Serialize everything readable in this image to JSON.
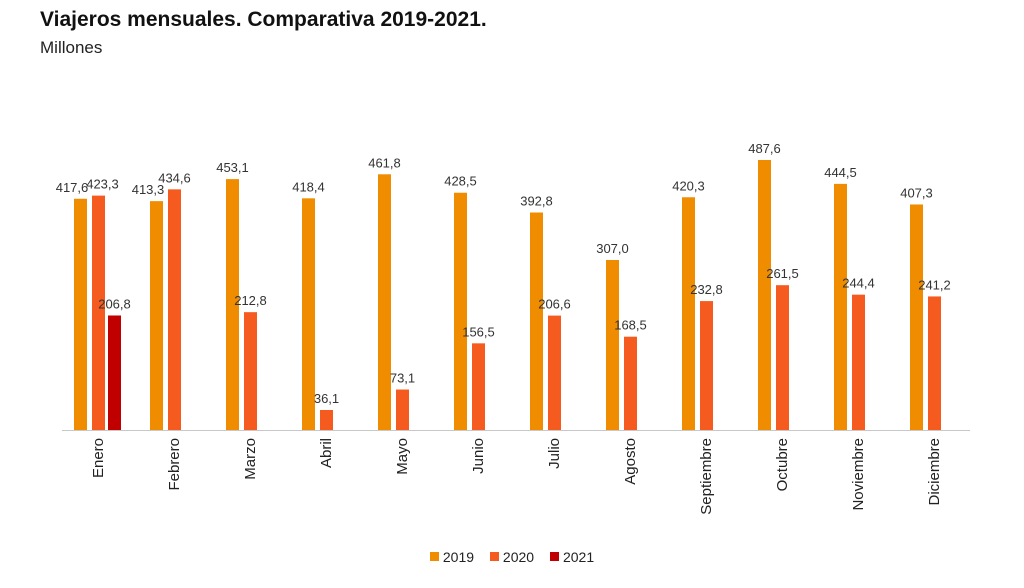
{
  "chart_data": {
    "type": "bar",
    "title": "Viajeros mensuales. Comparativa 2019-2021.",
    "subtitle": "Millones",
    "categories": [
      "Enero",
      "Febrero",
      "Marzo",
      "Abril",
      "Mayo",
      "Junio",
      "Julio",
      "Agosto",
      "Septiembre",
      "Octubre",
      "Noviembre",
      "Diciembre"
    ],
    "series": [
      {
        "name": "2019",
        "color": "#F08C00",
        "values": [
          417.6,
          413.3,
          453.1,
          418.4,
          461.8,
          428.5,
          392.8,
          307.0,
          420.3,
          487.6,
          444.5,
          407.3
        ],
        "labels": [
          "417,6",
          "413,3",
          "453,1",
          "418,4",
          "461,8",
          "428,5",
          "392,8",
          "307,0",
          "420,3",
          "487,6",
          "444,5",
          "407,3"
        ]
      },
      {
        "name": "2020",
        "color": "#F55A1E",
        "values": [
          423.3,
          434.6,
          212.8,
          36.1,
          73.1,
          156.5,
          206.6,
          168.5,
          232.8,
          261.5,
          244.4,
          241.2
        ],
        "labels": [
          "423,3",
          "434,6",
          "212,8",
          "36,1",
          "73,1",
          "156,5",
          "206,6",
          "168,5",
          "232,8",
          "261,5",
          "244,4",
          "241,2"
        ]
      },
      {
        "name": "2021",
        "color": "#C00000",
        "values": [
          206.8,
          null,
          null,
          null,
          null,
          null,
          null,
          null,
          null,
          null,
          null,
          null
        ],
        "labels": [
          "206,8",
          "",
          "",
          "",
          "",
          "",
          "",
          "",
          "",
          "",
          "",
          ""
        ]
      }
    ],
    "ylim": [
      0,
      500
    ],
    "grid": false,
    "legend_position": "bottom"
  }
}
